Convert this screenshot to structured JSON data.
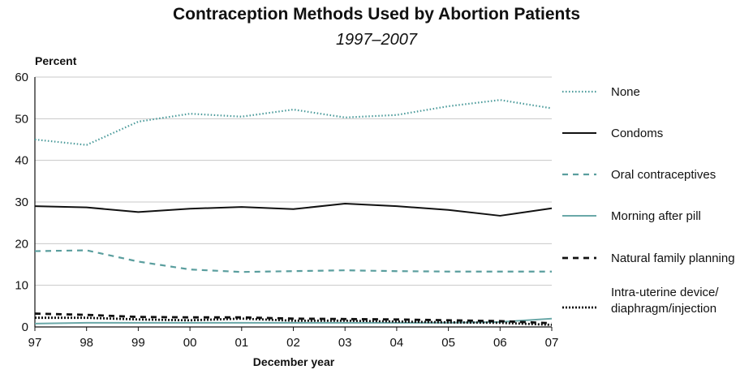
{
  "chart_data": {
    "type": "line",
    "title": "Contraception Methods Used by Abortion Patients",
    "subtitle": "1997–2007",
    "ylabel": "Percent",
    "xlabel": "December year",
    "ylim": [
      0,
      60
    ],
    "yticks": [
      0,
      10,
      20,
      30,
      40,
      50,
      60
    ],
    "categories": [
      "97",
      "98",
      "99",
      "00",
      "01",
      "02",
      "03",
      "04",
      "05",
      "06",
      "07"
    ],
    "grid": "horizontal",
    "legend_position": "right",
    "series": [
      {
        "name": "None",
        "color": "#4a9a9a",
        "style": "dotted",
        "values": [
          45.0,
          43.7,
          49.3,
          51.2,
          50.5,
          52.2,
          50.3,
          50.9,
          53.0,
          54.5,
          52.5
        ]
      },
      {
        "name": "Condoms",
        "color": "#111111",
        "style": "solid",
        "values": [
          29.0,
          28.7,
          27.6,
          28.4,
          28.8,
          28.3,
          29.6,
          29.0,
          28.1,
          26.7,
          28.5
        ]
      },
      {
        "name": "Oral contraceptives",
        "color": "#5a9e9e",
        "style": "dashed",
        "values": [
          18.2,
          18.4,
          15.7,
          13.8,
          13.2,
          13.4,
          13.6,
          13.4,
          13.3,
          13.3,
          13.3
        ]
      },
      {
        "name": "Morning after pill",
        "color": "#6aa8a8",
        "style": "solid",
        "values": [
          0.8,
          1.0,
          1.0,
          1.0,
          1.0,
          1.0,
          1.0,
          1.0,
          1.0,
          1.2,
          2.0
        ]
      },
      {
        "name": "Natural family planning",
        "color": "#111111",
        "style": "dashed-thick",
        "values": [
          3.2,
          2.9,
          2.4,
          2.3,
          2.3,
          2.0,
          1.9,
          1.8,
          1.6,
          1.4,
          0.9
        ]
      },
      {
        "name": "Intra-uterine device/\ndiaphragm/injection",
        "color": "#111111",
        "style": "dotted-thick",
        "values": [
          2.2,
          2.2,
          1.8,
          1.6,
          2.0,
          1.5,
          1.5,
          1.3,
          1.1,
          1.0,
          0.5
        ]
      }
    ]
  }
}
